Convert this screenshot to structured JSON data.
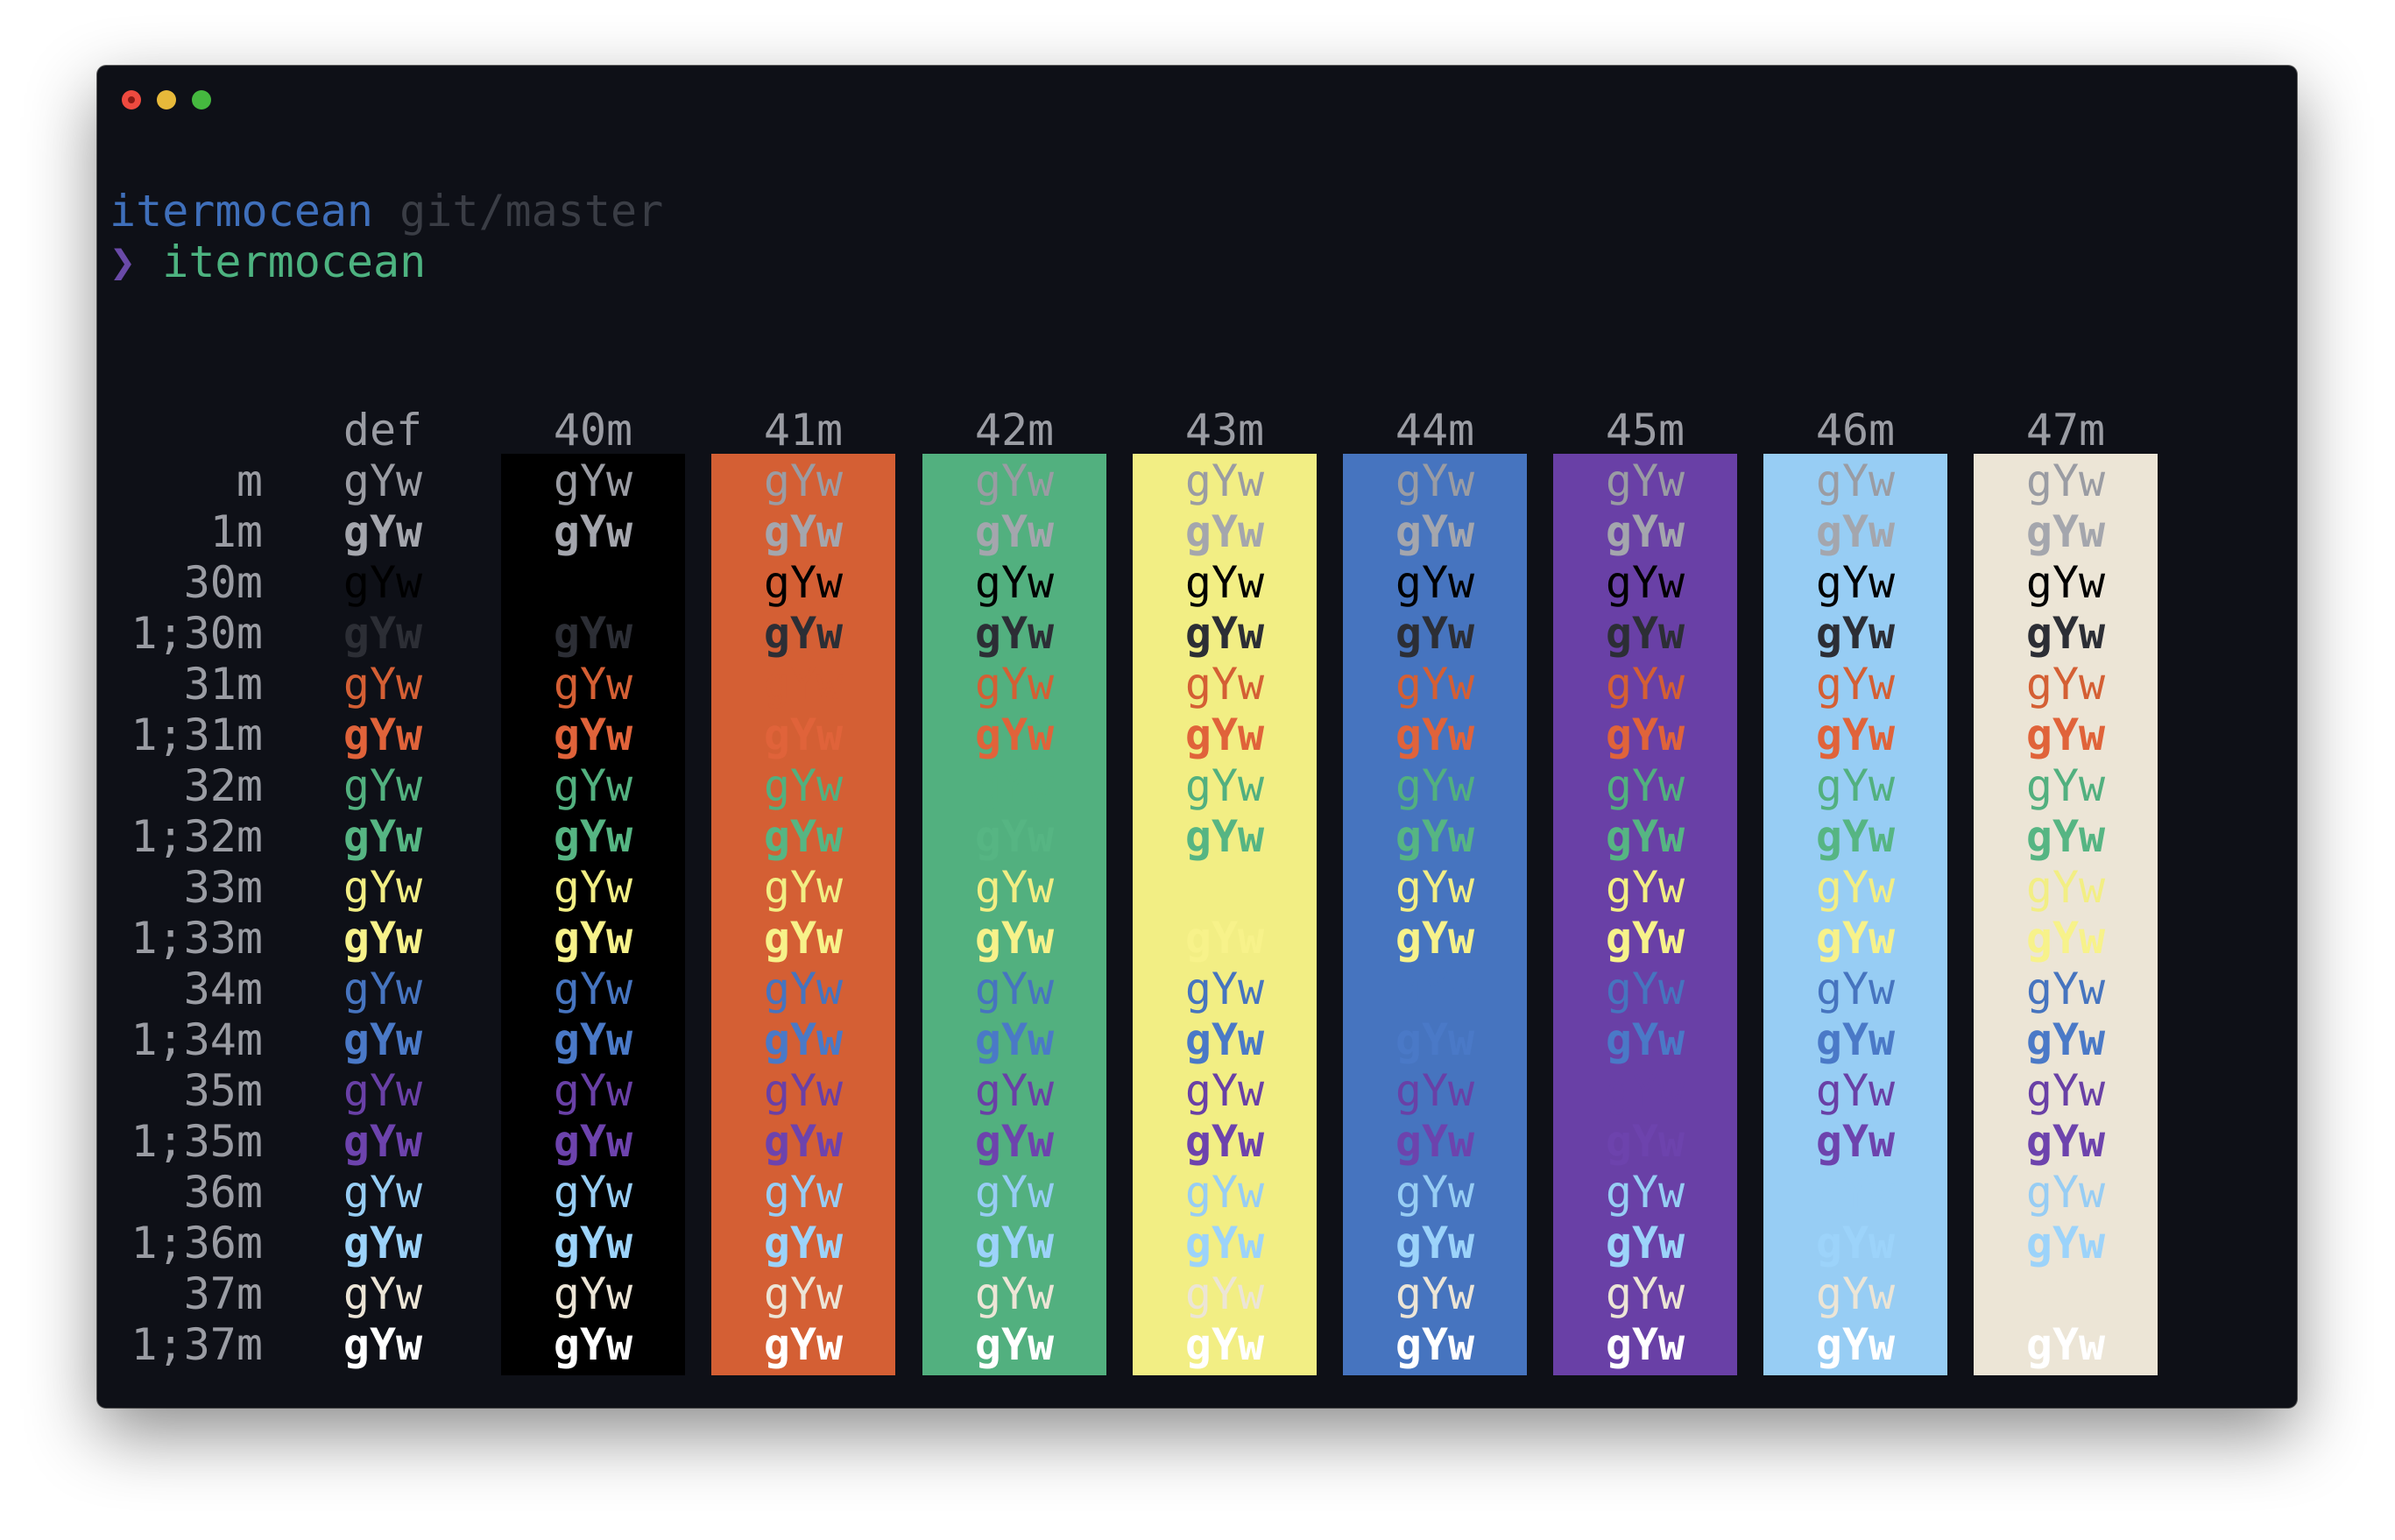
{
  "window": {
    "traffic_lights": {
      "close_color": "#ee4a3f",
      "minimize_color": "#e7b93a",
      "zoom_color": "#45b83f"
    }
  },
  "prompt": {
    "directory": "itermocean",
    "git_branch": "git/master",
    "symbol": "❯",
    "command": "itermocean"
  },
  "table": {
    "sample_text": "gYw",
    "columns": [
      {
        "label": "def",
        "bg": null
      },
      {
        "label": "40m",
        "bg": "#000000"
      },
      {
        "label": "41m",
        "bg": "#d45f34"
      },
      {
        "label": "42m",
        "bg": "#52b07f"
      },
      {
        "label": "43m",
        "bg": "#f2ee84"
      },
      {
        "label": "44m",
        "bg": "#4674bf"
      },
      {
        "label": "45m",
        "bg": "#6940a6"
      },
      {
        "label": "46m",
        "bg": "#97cdf4"
      },
      {
        "label": "47m",
        "bg": "#ece5d6"
      }
    ],
    "rows": [
      {
        "label": "m",
        "fg": "#9a9ca3",
        "bold": false
      },
      {
        "label": "1m",
        "fg": "#a4a6ad",
        "bold": true
      },
      {
        "label": "30m",
        "fg": "#000000",
        "bold": false
      },
      {
        "label": "1;30m",
        "fg": "#2c2e35",
        "bold": true
      },
      {
        "label": "31m",
        "fg": "#d45f34",
        "bold": false
      },
      {
        "label": "1;31m",
        "fg": "#e0633a",
        "bold": true
      },
      {
        "label": "32m",
        "fg": "#52b07f",
        "bold": false
      },
      {
        "label": "1;32m",
        "fg": "#56b583",
        "bold": true
      },
      {
        "label": "33m",
        "fg": "#f2ee84",
        "bold": false
      },
      {
        "label": "1;33m",
        "fg": "#f7f28a",
        "bold": true
      },
      {
        "label": "34m",
        "fg": "#4674bf",
        "bold": false
      },
      {
        "label": "1;34m",
        "fg": "#4a79c7",
        "bold": true
      },
      {
        "label": "35m",
        "fg": "#6940a6",
        "bold": false
      },
      {
        "label": "1;35m",
        "fg": "#6d43ad",
        "bold": true
      },
      {
        "label": "36m",
        "fg": "#97cdf4",
        "bold": false
      },
      {
        "label": "1;36m",
        "fg": "#9cd3fa",
        "bold": true
      },
      {
        "label": "37m",
        "fg": "#ece5d6",
        "bold": false
      },
      {
        "label": "1;37m",
        "fg": "#ffffff",
        "bold": true
      }
    ]
  }
}
